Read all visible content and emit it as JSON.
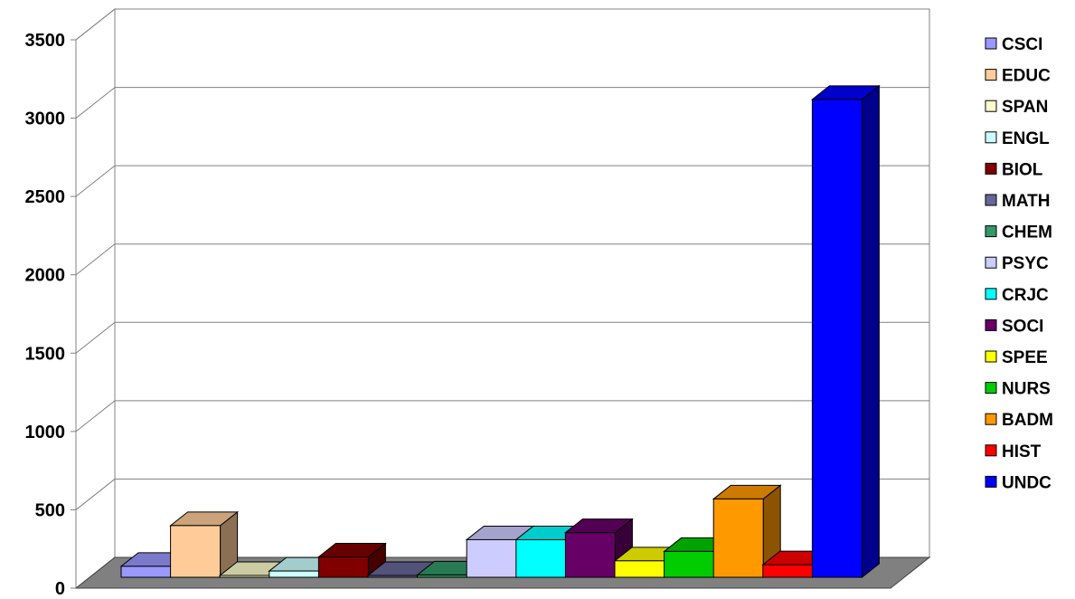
{
  "chart_data": {
    "type": "bar",
    "title": "",
    "xlabel": "",
    "ylabel": "",
    "ylim": [
      0,
      3500
    ],
    "yticks": [
      0,
      500,
      1000,
      1500,
      2000,
      2500,
      3000,
      3500
    ],
    "grid": true,
    "legend_position": "right",
    "series": [
      {
        "name": "CSCI",
        "value": 70,
        "color": "#9999ff"
      },
      {
        "name": "EDUC",
        "value": 330,
        "color": "#ffcc99"
      },
      {
        "name": "SPAN",
        "value": 10,
        "color": "#ffffcc"
      },
      {
        "name": "ENGL",
        "value": 40,
        "color": "#ccffff"
      },
      {
        "name": "BIOL",
        "value": 130,
        "color": "#800000"
      },
      {
        "name": "MATH",
        "value": 10,
        "color": "#666699"
      },
      {
        "name": "CHEM",
        "value": 15,
        "color": "#339966"
      },
      {
        "name": "PSYC",
        "value": 240,
        "color": "#ccccff"
      },
      {
        "name": "CRJC",
        "value": 240,
        "color": "#00ffff"
      },
      {
        "name": "SOCI",
        "value": 285,
        "color": "#660066"
      },
      {
        "name": "SPEE",
        "value": 105,
        "color": "#ffff00"
      },
      {
        "name": "NURS",
        "value": 165,
        "color": "#00cc00"
      },
      {
        "name": "BADM",
        "value": 500,
        "color": "#ff9900"
      },
      {
        "name": "HIST",
        "value": 80,
        "color": "#ff0000"
      },
      {
        "name": "UNDC",
        "value": 3050,
        "color": "#0000ff"
      }
    ]
  }
}
